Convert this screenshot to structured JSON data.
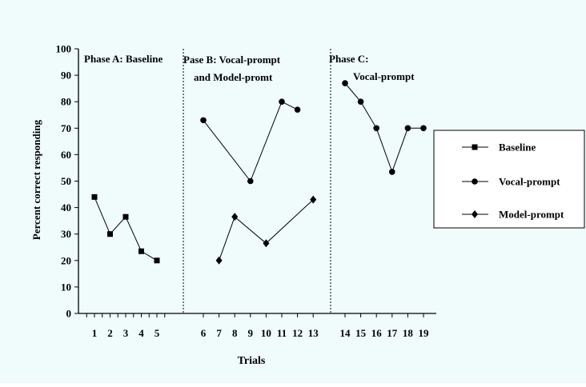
{
  "chart_data": {
    "type": "line",
    "background_color": "#f0fbfb",
    "line_color": "#000000",
    "xlabel": "Trials",
    "ylabel": "Percent correct responding",
    "ylim": [
      0,
      100
    ],
    "y_ticks": [
      0,
      10,
      20,
      30,
      40,
      50,
      60,
      70,
      80,
      90,
      100
    ],
    "x_ticks": [
      1,
      2,
      3,
      4,
      5,
      6,
      7,
      8,
      9,
      10,
      11,
      12,
      13,
      14,
      15,
      16,
      17,
      18,
      19
    ],
    "phase_lines_after_trial": [
      5,
      13
    ],
    "phase_labels": [
      {
        "text": "Phase A: Baseline"
      },
      {
        "text": "Pase B: Vocal-prompt"
      },
      {
        "text": "and Model-promt"
      },
      {
        "text": "Phase C:"
      },
      {
        "text": "Vocal-prompt"
      }
    ],
    "legend_position": "right",
    "series": [
      {
        "name": "Baseline",
        "marker": "square",
        "segments": [
          [
            [
              1,
              44
            ],
            [
              2,
              30
            ],
            [
              3,
              36.5
            ],
            [
              4,
              23.5
            ],
            [
              5,
              20
            ]
          ]
        ]
      },
      {
        "name": "Vocal-prompt",
        "marker": "circle",
        "segments": [
          [
            [
              6,
              73
            ],
            [
              9,
              50
            ],
            [
              11,
              80
            ],
            [
              12,
              77
            ]
          ],
          [
            [
              14,
              87
            ],
            [
              15,
              80
            ],
            [
              16,
              70
            ],
            [
              17,
              53.5
            ],
            [
              18,
              70
            ],
            [
              19,
              70
            ]
          ]
        ]
      },
      {
        "name": "Model-prompt",
        "marker": "diamond",
        "segments": [
          [
            [
              7,
              20
            ],
            [
              8,
              36.5
            ],
            [
              10,
              26.5
            ],
            [
              13,
              43
            ]
          ]
        ]
      }
    ]
  }
}
